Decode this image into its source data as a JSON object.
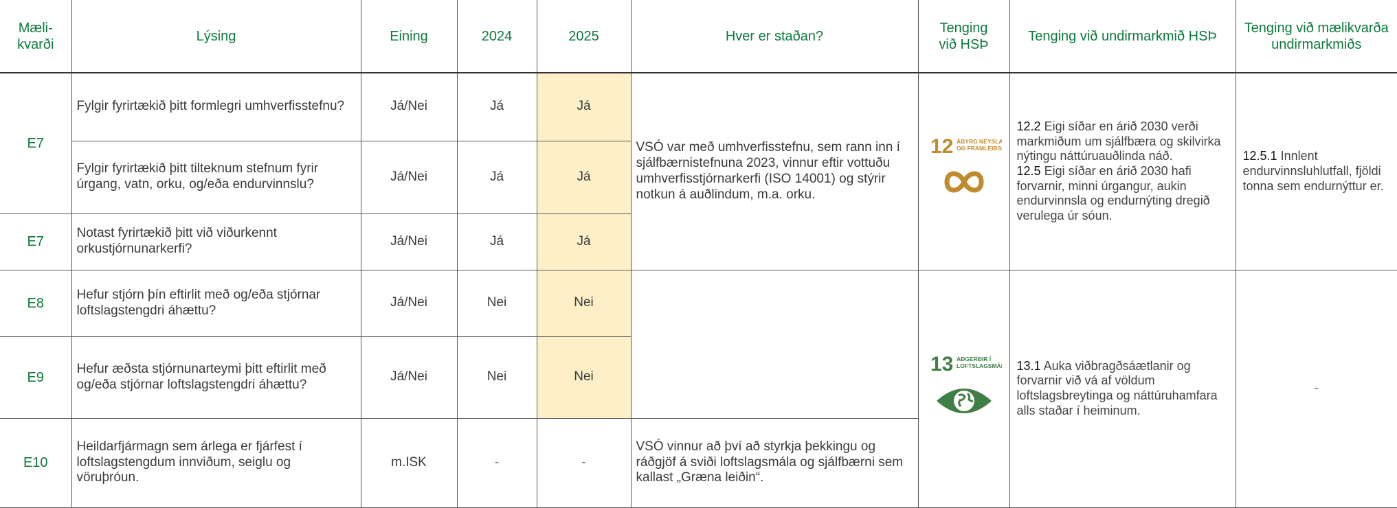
{
  "header": [
    "Mæli-\nkvarði",
    "Lýsing",
    "Eining",
    "2024",
    "2025",
    "Hver er staðan?",
    "Tenging\nvið HSÞ",
    "Tenging við undirmarkmið HSÞ",
    "Tenging við mælikvarða undirmarkmiðs"
  ],
  "rows": [
    {
      "measure": "E7",
      "description": "Fylgir fyrirtækið þitt formlegri umhverfisstefnu?",
      "unit": "Já/Nei",
      "y2024": "Já",
      "y2025": "Já"
    },
    {
      "description": "Fylgir fyrirtækið þitt tilteknum stefnum fyrir úrgang, vatn, orku, og/eða endurvinnslu?",
      "unit": "Já/Nei",
      "y2024": "Já",
      "y2025": "Já"
    },
    {
      "measure": "E7",
      "description": "Notast fyrirtækið þitt við viðurkennt orkustjórnunarkerfi?",
      "unit": "Já/Nei",
      "y2024": "Já",
      "y2025": "Já"
    },
    {
      "measure": "E8",
      "description": "Hefur stjórn þín eftirlit með og/eða stjórnar loftslagstengdri áhættu?",
      "unit": "Já/Nei",
      "y2024": "Nei",
      "y2025": "Nei"
    },
    {
      "measure": "E9",
      "description": "Hefur æðsta stjórnunarteymi þitt eftirlit með og/eða stjórnar loftslagstengdri áhættu?",
      "unit": "Já/Nei",
      "y2024": "Nei",
      "y2025": "Nei"
    },
    {
      "measure": "E10",
      "description": "Heildarfjármagn sem árlega er fjárfest í loftslagstengdum innviðum, seiglu og vöruþróun.",
      "unit": "m.ISK",
      "y2024": "-",
      "y2025": "-"
    }
  ],
  "status": [
    "VSÓ var með umhverfisstefnu, sem rann inn í sjálfbærnistefnuna 2023, vinnur eftir vottuðu umhverfisstjórnarkerfi (ISO 14001) og stýrir notkun á auðlindum, m.a. orku.",
    "VSÓ vinnur að því að styrkja þekkingu og ráðgjöf á sviði loftslagsmála og sjálfbærni sem kallast „Græna leiðin“."
  ],
  "sdg": [
    {
      "number": "12",
      "name": [
        "ÁBYRG NEYSLA",
        "OG FRAMLEIÐSLA"
      ],
      "targets": [
        {
          "code": "12.2",
          "text": "Eigi síðar en árið 2030 verði markmiðum um sjálfbæra og skilvirka nýtingu náttúruauðlinda náð."
        },
        {
          "code": "12.5",
          "text": "Eigi síðar en árið 2030 hafi forvarnir, minni úrgangur, aukin endurvinnsla og endurnýting dregið verulega úr sóun."
        }
      ],
      "indicator": {
        "code": "12.5.1",
        "text": "Innlent endurvinnsluhlutfall, fjöldi tonna sem endurnýttur er."
      }
    },
    {
      "number": "13",
      "name": [
        "AÐGERÐIR Í",
        "LOFTSLAGSMÁLUM"
      ],
      "targets": [
        {
          "code": "13.1",
          "text": "Auka viðbragðsáætlanir og forvarnir við vá af völdum loftslagsbreytinga og náttúruhamfara alls staðar í heiminum."
        }
      ],
      "indicator": {
        "text": "-"
      }
    }
  ]
}
